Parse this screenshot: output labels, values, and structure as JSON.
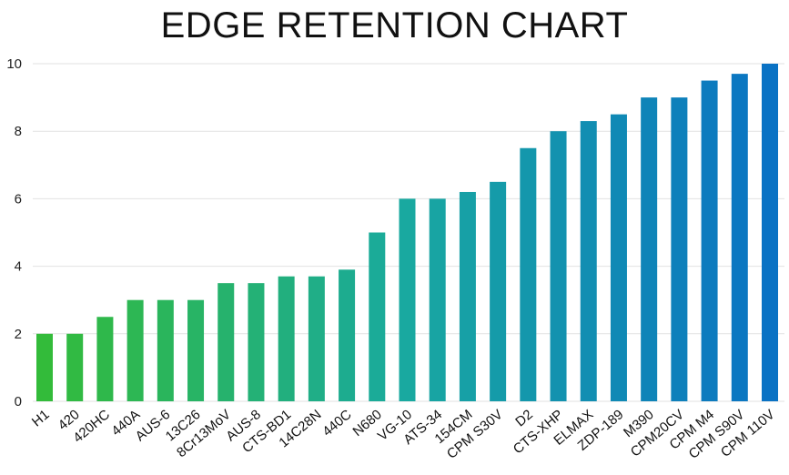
{
  "chart_data": {
    "type": "bar",
    "title": "EDGE RETENTION CHART",
    "xlabel": "",
    "ylabel": "",
    "ylim": [
      0,
      10
    ],
    "yticks": [
      0,
      2,
      4,
      6,
      8,
      10
    ],
    "grid": true,
    "legend": "none",
    "colors": {
      "start": "#33bb3a",
      "mid": "#19a9a0",
      "end": "#0a72c4"
    },
    "categories": [
      "H1",
      "420",
      "420HC",
      "440A",
      "AUS-6",
      "13C26",
      "8Cr13MoV",
      "AUS-8",
      "CTS-BD1",
      "14C28N",
      "440C",
      "N680",
      "VG-10",
      "ATS-34",
      "154CM",
      "CPM S30V",
      "D2",
      "CTS-XHP",
      "ELMAX",
      "ZDP-189",
      "M390",
      "CPM20CV",
      "CPM M4",
      "CPM S90V",
      "CPM 110V"
    ],
    "values": [
      2,
      2,
      2.5,
      3,
      3,
      3,
      3.5,
      3.5,
      3.7,
      3.7,
      3.9,
      5,
      6,
      6,
      6.2,
      6.5,
      7.5,
      8,
      8.3,
      8.5,
      9,
      9,
      9.5,
      9.7,
      10
    ]
  }
}
